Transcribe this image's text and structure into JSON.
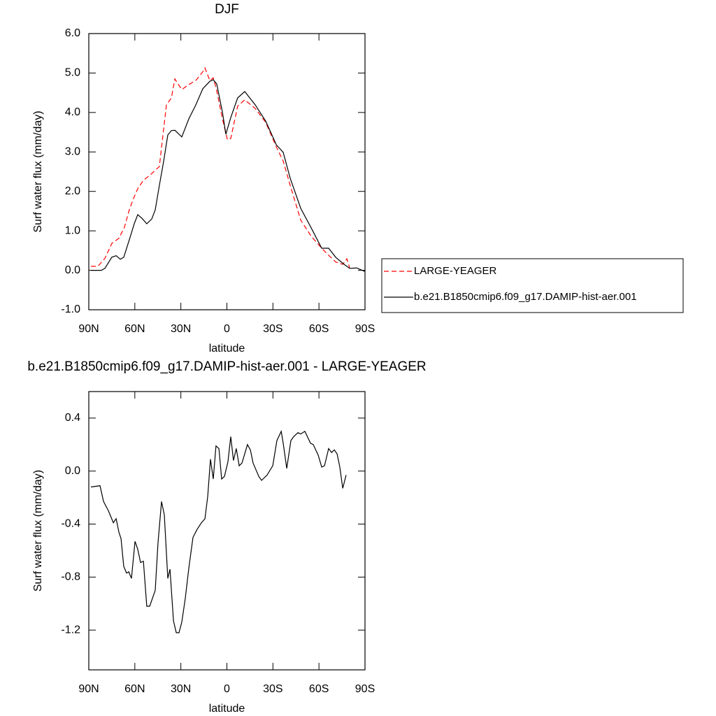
{
  "chart_data": [
    {
      "type": "line",
      "title": "DJF",
      "x_label": "latitude",
      "y_label": "Surf water flux (mm/day)",
      "xlim": [
        90,
        -90
      ],
      "xticks": [
        {
          "value": 90,
          "label": "90N"
        },
        {
          "value": 60,
          "label": "60N"
        },
        {
          "value": 30,
          "label": "30N"
        },
        0,
        {
          "value": -30,
          "label": "30S"
        },
        {
          "value": -60,
          "label": "60S"
        },
        {
          "value": -90,
          "label": "90S"
        }
      ],
      "ylim": [
        -1,
        6
      ],
      "yticks": [
        {
          "value": -1,
          "label": "-1.0"
        },
        {
          "value": 0,
          "label": "0.0"
        },
        {
          "value": 1,
          "label": "1.0"
        },
        {
          "value": 2,
          "label": "2.0"
        },
        {
          "value": 3,
          "label": "3.0"
        },
        {
          "value": 4,
          "label": "4.0"
        },
        {
          "value": 5,
          "label": "5.0"
        },
        {
          "value": 6,
          "label": "6.0"
        }
      ],
      "legend": "right",
      "series": [
        {
          "name": "LARGE-YEAGER",
          "color": "#ff0000",
          "style": "dashed",
          "x": [
            88.6,
            84.1,
            79.5,
            75.0,
            70.4,
            66.8,
            63.6,
            61.3,
            58.1,
            54.4,
            49.9,
            44.0,
            39.4,
            36.2,
            33.9,
            29.4,
            24.8,
            20.3,
            15.7,
            14.3,
            11.1,
            8.9,
            6.6,
            2.9,
            -0.3,
            -2.5,
            -7.0,
            -11.6,
            -18.5,
            -25.3,
            -32.2,
            -36.7,
            -41.3,
            -48.1,
            -55.0,
            -61.8,
            -66.3,
            -70.9,
            -75.5,
            -78.2,
            -80.0
          ],
          "values": [
            0.1,
            0.1,
            0.3,
            0.68,
            0.81,
            1.09,
            1.53,
            1.78,
            2.07,
            2.28,
            2.42,
            2.63,
            4.19,
            4.37,
            4.85,
            4.58,
            4.71,
            4.81,
            5.03,
            5.13,
            4.81,
            4.88,
            4.55,
            3.84,
            3.31,
            3.34,
            4.16,
            4.32,
            4.1,
            3.75,
            3.13,
            2.77,
            2.15,
            1.27,
            0.86,
            0.56,
            0.38,
            0.21,
            0.15,
            0.29,
            0.06
          ]
        },
        {
          "name": "b.e21.B1850cmip6.f09_g17.DAMIP-hist-aer.001",
          "color": "#000000",
          "style": "solid",
          "x": [
            88.6,
            81.8,
            79.5,
            75.0,
            72.2,
            69.5,
            67.2,
            63.6,
            60.4,
            58.1,
            55.4,
            52.2,
            49.0,
            46.7,
            44.0,
            41.2,
            38.5,
            36.2,
            33.9,
            29.4,
            24.8,
            20.3,
            15.7,
            11.1,
            8.9,
            6.6,
            2.9,
            0.7,
            -2.5,
            -7.0,
            -11.6,
            -18.5,
            -25.3,
            -32.2,
            -36.7,
            -41.3,
            -48.1,
            -55.0,
            -61.8,
            -66.3,
            -70.9,
            -76.4,
            -80.0,
            -84.6,
            -90.0
          ],
          "values": [
            0.0,
            0.0,
            0.05,
            0.33,
            0.37,
            0.28,
            0.33,
            0.77,
            1.18,
            1.41,
            1.32,
            1.18,
            1.3,
            1.53,
            2.15,
            2.77,
            3.43,
            3.54,
            3.55,
            3.38,
            3.84,
            4.19,
            4.6,
            4.79,
            4.83,
            4.72,
            4.01,
            3.45,
            3.87,
            4.37,
            4.53,
            4.19,
            3.78,
            3.18,
            2.99,
            2.33,
            1.57,
            1.07,
            0.56,
            0.56,
            0.33,
            0.15,
            0.05,
            0.06,
            -0.03
          ]
        }
      ]
    },
    {
      "type": "line",
      "title": "b.e21.B1850cmip6.f09_g17.DAMIP-hist-aer.001 - LARGE-YEAGER",
      "x_label": "latitude",
      "y_label": "Surf water flux (mm/day)",
      "xlim": [
        90,
        -90
      ],
      "xticks": [
        {
          "value": 90,
          "label": "90N"
        },
        {
          "value": 60,
          "label": "60N"
        },
        {
          "value": 30,
          "label": "30N"
        },
        0,
        {
          "value": -30,
          "label": "30S"
        },
        {
          "value": -60,
          "label": "60S"
        },
        {
          "value": -90,
          "label": "90S"
        }
      ],
      "ylim": [
        -1.5,
        0.6
      ],
      "yticks": [
        0.4,
        {
          "value": 0,
          "label": "0.0"
        },
        -0.4,
        -0.8,
        -1.2
      ],
      "series": [
        {
          "color": "#000000",
          "style": "solid",
          "x": [
            88.6,
            82.7,
            80.4,
            77.2,
            74.0,
            72.2,
            70.4,
            69.0,
            67.2,
            65.4,
            64.0,
            62.2,
            59.9,
            58.1,
            56.3,
            54.4,
            52.2,
            50.3,
            46.7,
            44.9,
            42.6,
            40.8,
            38.5,
            37.1,
            34.8,
            33.0,
            31.2,
            29.4,
            27.1,
            24.8,
            22.1,
            19.4,
            16.6,
            14.3,
            12.5,
            10.7,
            8.9,
            7.1,
            5.2,
            3.4,
            1.6,
            -0.7,
            -2.5,
            -4.3,
            -6.1,
            -8.0,
            -9.8,
            -11.6,
            -13.4,
            -15.3,
            -17.1,
            -20.8,
            -22.6,
            -26.2,
            -29.9,
            -32.6,
            -35.4,
            -36.7,
            -39.0,
            -41.7,
            -43.5,
            -46.3,
            -48.1,
            -50.8,
            -54.5,
            -56.3,
            -59.5,
            -61.8,
            -63.6,
            -66.3,
            -68.2,
            -70.0,
            -71.8,
            -73.6,
            -75.5,
            -77.7
          ],
          "values": [
            -0.12,
            -0.11,
            -0.23,
            -0.3,
            -0.39,
            -0.36,
            -0.46,
            -0.51,
            -0.72,
            -0.77,
            -0.76,
            -0.81,
            -0.53,
            -0.59,
            -0.69,
            -0.68,
            -1.02,
            -1.02,
            -0.9,
            -0.54,
            -0.23,
            -0.33,
            -0.81,
            -0.74,
            -1.13,
            -1.22,
            -1.22,
            -1.14,
            -0.96,
            -0.73,
            -0.5,
            -0.44,
            -0.39,
            -0.36,
            -0.19,
            0.09,
            -0.06,
            0.19,
            0.17,
            -0.06,
            -0.04,
            0.07,
            0.26,
            0.08,
            0.17,
            0.04,
            0.06,
            0.13,
            0.2,
            0.16,
            0.06,
            -0.04,
            -0.07,
            -0.03,
            0.04,
            0.23,
            0.3,
            0.21,
            0.02,
            0.23,
            0.26,
            0.29,
            0.28,
            0.3,
            0.21,
            0.2,
            0.12,
            0.03,
            0.04,
            0.17,
            0.14,
            0.16,
            0.13,
            0.03,
            -0.13,
            -0.03
          ]
        }
      ]
    }
  ]
}
